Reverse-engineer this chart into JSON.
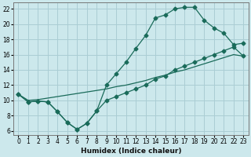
{
  "xlabel": "Humidex (Indice chaleur)",
  "bg_color": "#cce8ec",
  "grid_color": "#aacdd4",
  "line_color": "#1a6b5a",
  "xlim": [
    -0.5,
    23.5
  ],
  "ylim": [
    5.5,
    22.8
  ],
  "xticks": [
    0,
    1,
    2,
    3,
    4,
    5,
    6,
    7,
    8,
    9,
    10,
    11,
    12,
    13,
    14,
    15,
    16,
    17,
    18,
    19,
    20,
    21,
    22,
    23
  ],
  "yticks": [
    6,
    8,
    10,
    12,
    14,
    16,
    18,
    20,
    22
  ],
  "line1_x": [
    0,
    1,
    2,
    3,
    4,
    5,
    6,
    7,
    8,
    9,
    10,
    11,
    12,
    13,
    14,
    15,
    16,
    17,
    18,
    19,
    20,
    21,
    22,
    23
  ],
  "line1_y": [
    10.8,
    9.8,
    9.9,
    9.8,
    8.5,
    7.1,
    6.2,
    7.0,
    8.6,
    12.0,
    13.5,
    15.0,
    16.8,
    18.5,
    20.8,
    21.2,
    22.0,
    22.2,
    22.2,
    20.5,
    19.5,
    18.8,
    17.3,
    17.5
  ],
  "line2_x": [
    0,
    1,
    2,
    3,
    4,
    5,
    6,
    7,
    8,
    9,
    10,
    11,
    12,
    13,
    14,
    15,
    16,
    17,
    18,
    19,
    20,
    21,
    22,
    23
  ],
  "line2_y": [
    10.8,
    9.8,
    9.9,
    9.8,
    8.5,
    7.1,
    6.2,
    7.0,
    8.6,
    10.0,
    10.5,
    11.0,
    11.5,
    12.0,
    12.8,
    13.2,
    14.0,
    14.5,
    15.0,
    15.5,
    16.0,
    16.5,
    17.0,
    15.8
  ],
  "line3_x": [
    0,
    1,
    2,
    3,
    4,
    5,
    6,
    7,
    8,
    9,
    10,
    11,
    12,
    13,
    14,
    15,
    16,
    17,
    18,
    19,
    20,
    21,
    22,
    23
  ],
  "line3_y": [
    10.8,
    10.0,
    10.1,
    10.3,
    10.5,
    10.7,
    10.9,
    11.1,
    11.3,
    11.5,
    11.8,
    12.0,
    12.3,
    12.6,
    13.0,
    13.3,
    13.7,
    14.0,
    14.4,
    14.8,
    15.2,
    15.6,
    16.0,
    15.8
  ]
}
